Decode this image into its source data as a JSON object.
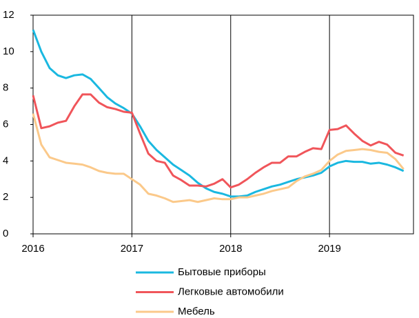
{
  "chart_data": {
    "type": "line",
    "x": [
      2016,
      2016.083,
      2016.167,
      2016.25,
      2016.333,
      2016.417,
      2016.5,
      2016.583,
      2016.667,
      2016.75,
      2016.833,
      2016.917,
      2017,
      2017.083,
      2017.167,
      2017.25,
      2017.333,
      2017.417,
      2017.5,
      2017.583,
      2017.667,
      2017.75,
      2017.833,
      2017.917,
      2018,
      2018.083,
      2018.167,
      2018.25,
      2018.333,
      2018.417,
      2018.5,
      2018.583,
      2018.667,
      2018.75,
      2018.833,
      2018.917,
      2019,
      2019.083,
      2019.167,
      2019.25,
      2019.333,
      2019.417,
      2019.5,
      2019.583,
      2019.667,
      2019.75
    ],
    "series": [
      {
        "name": "Бытовые приборы",
        "color": "#1ab8e0",
        "values": [
          11.2,
          10.0,
          9.1,
          8.7,
          8.55,
          8.7,
          8.75,
          8.5,
          8.0,
          7.5,
          7.15,
          6.9,
          6.6,
          5.9,
          5.1,
          4.6,
          4.2,
          3.8,
          3.5,
          3.2,
          2.8,
          2.5,
          2.3,
          2.2,
          2.05,
          2.05,
          2.1,
          2.3,
          2.45,
          2.6,
          2.7,
          2.85,
          3.0,
          3.1,
          3.2,
          3.35,
          3.7,
          3.9,
          4.0,
          3.95,
          3.95,
          3.85,
          3.9,
          3.8,
          3.65,
          3.45
        ]
      },
      {
        "name": "Легковые автомобили",
        "color": "#f0555a",
        "values": [
          7.6,
          5.8,
          5.9,
          6.1,
          6.2,
          7.0,
          7.65,
          7.65,
          7.2,
          6.95,
          6.85,
          6.7,
          6.65,
          5.5,
          4.4,
          4.0,
          3.9,
          3.2,
          2.95,
          2.65,
          2.65,
          2.6,
          2.75,
          3.0,
          2.55,
          2.7,
          3.0,
          3.35,
          3.65,
          3.9,
          3.9,
          4.25,
          4.25,
          4.5,
          4.7,
          4.65,
          5.7,
          5.75,
          5.95,
          5.5,
          5.1,
          4.85,
          5.05,
          4.9,
          4.45,
          4.3
        ]
      },
      {
        "name": "Мебель",
        "color": "#fbc98a",
        "values": [
          6.6,
          4.9,
          4.2,
          4.05,
          3.9,
          3.85,
          3.8,
          3.65,
          3.45,
          3.35,
          3.3,
          3.3,
          3.0,
          2.7,
          2.2,
          2.1,
          1.95,
          1.75,
          1.8,
          1.85,
          1.75,
          1.85,
          1.95,
          1.9,
          1.9,
          2.0,
          2.0,
          2.1,
          2.2,
          2.35,
          2.45,
          2.55,
          2.9,
          3.15,
          3.3,
          3.5,
          4.0,
          4.35,
          4.55,
          4.6,
          4.65,
          4.6,
          4.5,
          4.45,
          4.1,
          3.55
        ]
      }
    ],
    "xlim": [
      2016,
      2019.85
    ],
    "xticks": [
      2016,
      2017,
      2018,
      2019
    ],
    "ylim": [
      0,
      12
    ],
    "yticks": [
      0,
      2,
      4,
      6,
      8,
      10,
      12
    ],
    "grid": "x"
  }
}
